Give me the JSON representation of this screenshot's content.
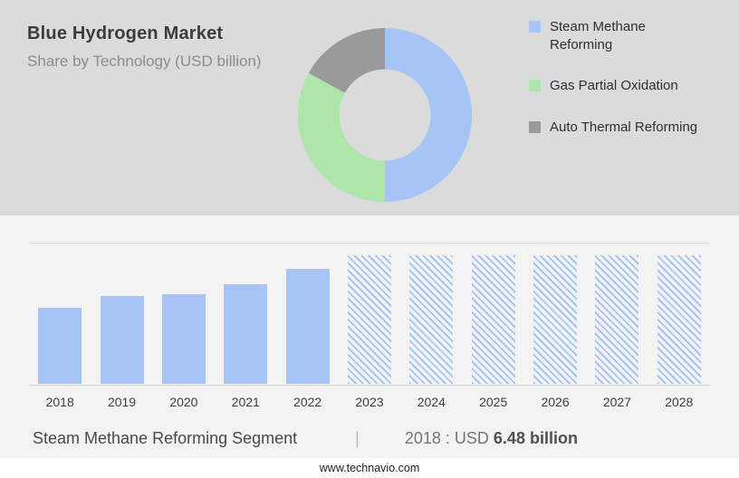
{
  "header": {
    "title": "Blue Hydrogen Market",
    "subtitle": "Share by Technology (USD billion)"
  },
  "colors": {
    "accent_blue": "#A6C4F5",
    "accent_green": "#AEE5A9",
    "accent_gray": "#9A9A9A",
    "top_background": "#DBDBDB",
    "chart_background": "#F3F3F4"
  },
  "chart_data": [
    {
      "type": "pie",
      "title": "Share by Technology (USD billion)",
      "donut": true,
      "inner_radius_ratio": 0.53,
      "legend_position": "right",
      "segments": [
        {
          "label": "Steam Methane Reforming",
          "value": 50,
          "color": "#A6C4F5"
        },
        {
          "label": "Gas Partial Oxidation",
          "value": 33,
          "color": "#AEE5A9"
        },
        {
          "label": "Auto Thermal Reforming",
          "value": 17,
          "color": "#9A9A9A"
        }
      ]
    },
    {
      "type": "bar",
      "title": "Blue Hydrogen Market size by year (USD billion)",
      "categories": [
        "2018",
        "2019",
        "2020",
        "2021",
        "2022",
        "2023",
        "2024",
        "2025",
        "2026",
        "2027",
        "2028"
      ],
      "values": [
        6.48,
        7.5,
        7.7,
        8.5,
        9.8,
        11,
        11,
        11,
        11,
        11,
        11
      ],
      "forecast_from_index": 5,
      "forecast_style": "hatched",
      "ylim": [
        0,
        12
      ],
      "grid": true,
      "bar_color": "#A6C4F5",
      "annotation": "2018 : USD 6.48 billion"
    }
  ],
  "footer": {
    "segment_label": "Steam Methane Reforming Segment",
    "separator": "|",
    "value_prefix": "2018 : USD",
    "value_bold": "6.48 billion"
  },
  "meta": {
    "website": "www.technavio.com"
  }
}
